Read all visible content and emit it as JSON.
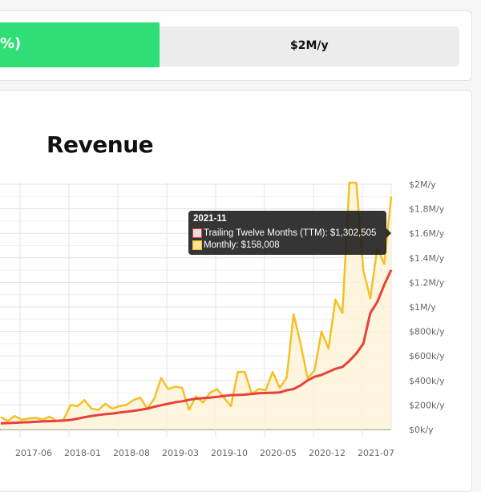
{
  "progress": {
    "fill_label": "%)",
    "goal_label": "$2M/y",
    "fill_color": "#2fde76"
  },
  "chart_data": {
    "type": "line",
    "title": "Revenue",
    "xlabel": "",
    "ylabel": "",
    "ylim": [
      0,
      2000
    ],
    "y_unit": "k/y",
    "y_ticks": [
      "$0k/y",
      "$200k/y",
      "$400k/y",
      "$600k/y",
      "$800k/y",
      "$1M/y",
      "$1.2M/y",
      "$1.4M/y",
      "$1.6M/y",
      "$1.8M/y",
      "$2M/y"
    ],
    "x_ticks": [
      "2017-06",
      "2018-01",
      "2018-08",
      "2019-03",
      "2019-10",
      "2020-05",
      "2020-12",
      "2021-07"
    ],
    "series": [
      {
        "name": "Monthly",
        "color": "#f5c024",
        "values": [
          100,
          70,
          110,
          80,
          90,
          95,
          80,
          105,
          70,
          80,
          200,
          190,
          240,
          170,
          160,
          210,
          170,
          190,
          200,
          240,
          260,
          170,
          250,
          420,
          330,
          350,
          340,
          160,
          270,
          220,
          300,
          330,
          260,
          190,
          470,
          470,
          290,
          330,
          320,
          470,
          340,
          420,
          940,
          700,
          420,
          480,
          800,
          660,
          1060,
          950,
          2200,
          2200,
          1300,
          1070,
          1480,
          1350,
          1900
        ]
      },
      {
        "name": "Trailing Twelve Months (TTM)",
        "color": "#e8403a",
        "values": [
          50,
          52,
          55,
          58,
          60,
          63,
          66,
          68,
          70,
          73,
          78,
          88,
          100,
          110,
          118,
          125,
          130,
          138,
          145,
          152,
          160,
          170,
          185,
          198,
          210,
          222,
          230,
          242,
          252,
          256,
          260,
          266,
          274,
          280,
          282,
          284,
          290,
          296,
          298,
          300,
          302,
          320,
          330,
          360,
          400,
          430,
          445,
          470,
          495,
          510,
          560,
          620,
          700,
          950,
          1040,
          1180,
          1302
        ]
      }
    ],
    "tooltip": {
      "title": "2021-11",
      "ttm": "Trailing Twelve Months (TTM): $1,302,505",
      "monthly": "Monthly: $158,008"
    }
  }
}
